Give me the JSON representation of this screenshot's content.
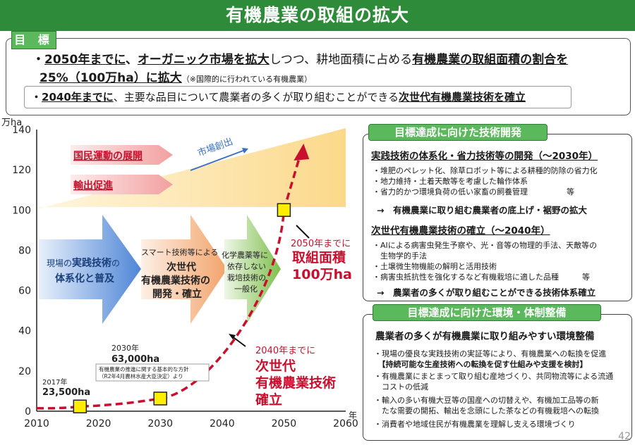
{
  "title": "有機農業の取組の拡大",
  "goal": {
    "label": "目 標",
    "line1_pre": "・",
    "line1_a": "2050年までに",
    "line1_b": "、",
    "line1_c": "オーガニック市場を拡大",
    "line1_d": "しつつ、耕地面積に占める",
    "line1_e": "有機農業の取組面積の割合を",
    "line2_a": "25%（100万ha）に拡大",
    "line2_note": "（※国際的に行われている有機農業）",
    "line3_pre": "・",
    "line3_a": "2040年までに",
    "line3_b": "、主要な品目について農業者の多くが取り組むことができる",
    "line3_c": "次世代有機農業技術を確立"
  },
  "chart_data": {
    "type": "line",
    "ylabel": "万ha",
    "xlabel": "年",
    "xlim": [
      2010,
      2060
    ],
    "ylim": [
      0,
      140
    ],
    "x_ticks": [
      "2010",
      "2020",
      "2030",
      "2040",
      "2050",
      "2060"
    ],
    "y_ticks": [
      "0",
      "20",
      "40",
      "60",
      "80",
      "100",
      "120",
      "140"
    ],
    "points": [
      {
        "x": 2017,
        "y": 2.35
      },
      {
        "x": 2030,
        "y": 6.3
      },
      {
        "x": 2050,
        "y": 100
      }
    ],
    "annotations": {
      "p2017_year": "2017年",
      "p2017_value": "23,500ha",
      "p2030_year": "2030年",
      "p2030_value": "63,000ha",
      "p2030_note1": "有機農業の推進に関する基本的な方針",
      "p2030_note2": "（R2年4月農林水産大臣決定）より",
      "market_label": "市場創出",
      "band1": "国民運動の展開",
      "band2": "輸出促進",
      "arrow1_a": "現場の",
      "arrow1_b": "実践技術",
      "arrow1_c": "の",
      "arrow1_d": "体系化と普及",
      "arrow2_a": "スマート技術等による",
      "arrow2_b": "次世代",
      "arrow2_c": "有機農業技術の",
      "arrow2_d": "開発・確立",
      "arrow3_a": "化学農薬等に",
      "arrow3_b": "依存しない",
      "arrow3_c": "栽培技術の",
      "arrow3_d": "一般化",
      "goal2050_a": "2050年までに",
      "goal2050_b": "取組面積",
      "goal2050_c": "100万ha",
      "goal2040_a": "2040年までに",
      "goal2040_b": "次世代",
      "goal2040_c": "有機農業技術",
      "goal2040_d": "確立"
    }
  },
  "tech_panel": {
    "header": "目標達成に向けた技術開発",
    "sec1": "実践技術の体系化・省力技術等の開発（～2030年）",
    "sec1_items": [
      "・堆肥のペレット化、除草ロボット等による耕種的防除の省力化",
      "・地力維持・土着天敵等を考慮した輪作体系",
      "・省力的かつ環境負荷の低い家畜の飼養管理　　　　　等"
    ],
    "sec1_result": "→　有機農業に取り組む農業者の底上げ・裾野の拡大",
    "sec2": "次世代有機農業技術の確立（～2040年）",
    "sec2_items": [
      "・AIによる病害虫発生予察や、光・音等の物理的手法、天敵等の",
      "　生物学的手法",
      "・土壌微生物機能の解明と活用技術",
      "・病害虫抵抗性を強化するなど有機栽培に適した品種　　　等"
    ],
    "sec2_result": "→　農業者の多くが取り組むことができる技術体系確立"
  },
  "env_panel": {
    "header": "目標達成に向けた環境・体制整備",
    "sec": "農業者の多くが有機農業に取り組みやすい環境整備",
    "items": [
      "・現場の優良な実践技術の実証等により、有機農業への転換を促進",
      "　【持続可能な生産技術への転換を促す仕組みや支援を検討】",
      "・有機農業にまとまって取り組む産地づくり、共同物流等による流通",
      "　コストの低減",
      "・輸入の多い有機大豆等の国産への切替えや、有機加工品等の新",
      "　たな需要の開拓、輸出を念頭にした茶などの有機栽培への転換",
      "・消費者や地域住民が有機農業を理解し支える環境づくり"
    ]
  },
  "page_number": "42",
  "colors": {
    "header_green": "#2e8b3a",
    "accent_red": "#c8102e",
    "marker_yellow": "#ffee00"
  }
}
